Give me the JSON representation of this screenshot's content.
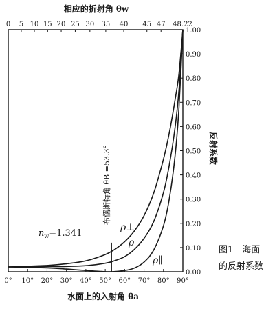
{
  "chart_data": {
    "type": "line",
    "title": "",
    "top_axis": {
      "label": "相应的折射角 θw",
      "ticks": [
        "0",
        "5",
        "10",
        "15",
        "20",
        "25",
        "30",
        "35",
        "40",
        "45",
        "47",
        "48.22"
      ],
      "tick_angles_deg": [
        0,
        5,
        10,
        15,
        20,
        25,
        30,
        35,
        40,
        45,
        47,
        48.22
      ]
    },
    "x_axis": {
      "label": "水面上的入射角 θa",
      "ticks": [
        "0°",
        "10°",
        "20°",
        "30°",
        "40°",
        "50°",
        "60°",
        "70°",
        "80°",
        "90°"
      ],
      "range": [
        0,
        90
      ]
    },
    "y_axis": {
      "label": "反射系数",
      "ticks": [
        "0.00",
        "0.10",
        "0.20",
        "0.30",
        "0.40",
        "0.50",
        "0.60",
        "0.70",
        "0.80",
        "0.90",
        "1.00"
      ],
      "range": [
        0,
        1
      ]
    },
    "series": [
      {
        "name": "ρ⊥",
        "x": [
          0,
          20,
          30,
          40,
          50,
          55,
          60,
          65,
          70,
          75,
          80,
          83,
          86,
          88,
          90
        ],
        "y": [
          0.02,
          0.026,
          0.033,
          0.045,
          0.071,
          0.093,
          0.124,
          0.168,
          0.232,
          0.326,
          0.465,
          0.573,
          0.711,
          0.819,
          1.0
        ]
      },
      {
        "name": "ρ",
        "x": [
          0,
          20,
          30,
          40,
          50,
          55,
          60,
          65,
          70,
          75,
          80,
          83,
          86,
          88,
          90
        ],
        "y": [
          0.02,
          0.021,
          0.022,
          0.025,
          0.035,
          0.046,
          0.062,
          0.092,
          0.138,
          0.208,
          0.327,
          0.44,
          0.597,
          0.752,
          1.0
        ]
      },
      {
        "name": "ρ∥",
        "x": [
          0,
          20,
          30,
          40,
          48,
          53.3,
          60,
          65,
          70,
          75,
          80,
          83,
          86,
          88,
          90
        ],
        "y": [
          0.02,
          0.016,
          0.011,
          0.005,
          0.001,
          0.0,
          0.005,
          0.015,
          0.04,
          0.09,
          0.19,
          0.3,
          0.48,
          0.68,
          1.0
        ]
      }
    ],
    "annotations": {
      "n_w": "n",
      "n_w_sub": "w",
      "n_w_value": "=1.341",
      "brewster": "布儒斯特角 θB =53.3°",
      "brewster_angle": 53.3
    },
    "caption_line1": "图1　海面",
    "caption_line2": "的反射系数"
  }
}
